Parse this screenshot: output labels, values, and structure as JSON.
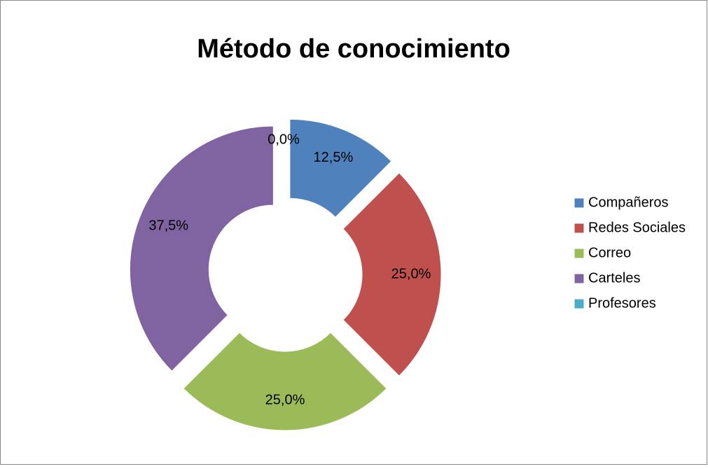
{
  "chart_data": {
    "type": "doughnut",
    "title": "Método de conocimiento",
    "categories": [
      "Compañeros",
      "Redes Sociales",
      "Correo",
      "Carteles",
      "Profesores"
    ],
    "values": [
      12.5,
      25,
      25,
      37.5,
      0
    ],
    "value_labels": [
      "12,5%",
      "25,0%",
      "25,0%",
      "37,5%",
      "0,0%"
    ],
    "colors": [
      "#4f81bd",
      "#c0504d",
      "#9bbb59",
      "#8064a2",
      "#4bacc6"
    ],
    "legend": "right"
  }
}
